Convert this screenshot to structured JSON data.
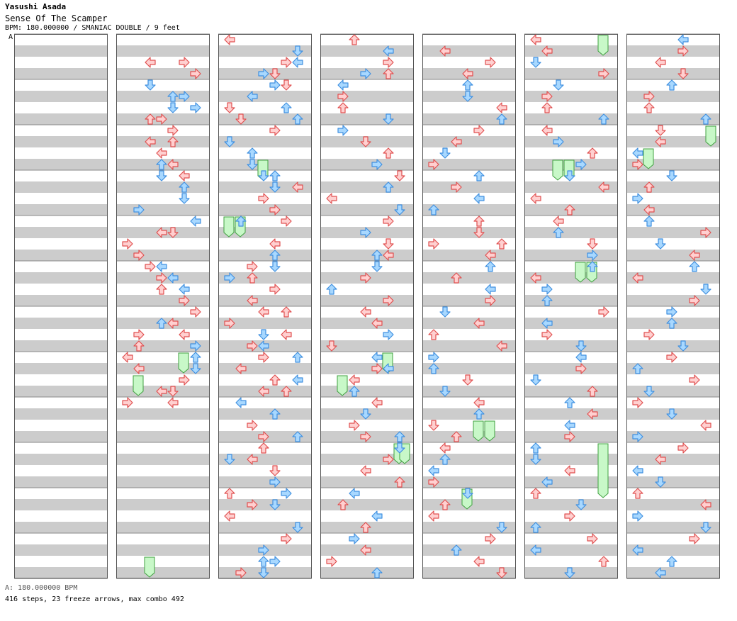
{
  "header": {
    "artist": "Yasushi Asada",
    "title": "Sense Of The Scamper",
    "info": "BPM: 180.000000 / SMANIAC DOUBLE / 9 feet",
    "bpm_marker": "A"
  },
  "footer": {
    "bpm_line": "A: 180.000000 BPM",
    "stats_line": "416 steps, 23 freeze arrows, max combo 492"
  },
  "colors": {
    "stripe": "#cccccc",
    "background": "#ffffff",
    "border": "#555555",
    "red_fill": "#ffd0d0",
    "red_stroke": "#e05050",
    "blue_fill": "#a8d8ff",
    "blue_stroke": "#4090e0",
    "freeze_fill": "#c8f8c8",
    "freeze_stroke": "#40a040"
  },
  "icons": [
    "arrow-left-icon",
    "arrow-down-icon",
    "arrow-up-icon",
    "arrow-right-icon",
    "freeze-arrow-icon"
  ],
  "notes": [
    [
      1,
      2,
      "R",
      "L"
    ],
    [
      1,
      2,
      "R",
      "R"
    ],
    [
      1,
      3,
      "R",
      "R"
    ],
    [
      1,
      4,
      "B",
      "D"
    ],
    [
      1,
      5,
      "B",
      "U"
    ],
    [
      1,
      5,
      "B",
      "R"
    ],
    [
      1,
      6,
      "B",
      "D"
    ],
    [
      1,
      6,
      "B",
      "R"
    ],
    [
      1,
      7,
      "R",
      "R"
    ],
    [
      1,
      7,
      "R",
      "U"
    ],
    [
      1,
      8,
      "R",
      "R"
    ],
    [
      1,
      9,
      "R",
      "L"
    ],
    [
      1,
      9,
      "R",
      "U"
    ],
    [
      1,
      10,
      "R",
      "L"
    ],
    [
      1,
      11,
      "R",
      "L"
    ],
    [
      1,
      11,
      "B",
      "U"
    ],
    [
      1,
      12,
      "R",
      "L"
    ],
    [
      1,
      12,
      "B",
      "D"
    ],
    [
      1,
      13,
      "B",
      "U"
    ],
    [
      1,
      14,
      "B",
      "D"
    ],
    [
      1,
      15,
      "B",
      "R"
    ],
    [
      1,
      16,
      "B",
      "L"
    ],
    [
      1,
      17,
      "R",
      "D"
    ],
    [
      1,
      17,
      "R",
      "L"
    ],
    [
      1,
      18,
      "R",
      "R"
    ],
    [
      1,
      19,
      "R",
      "R"
    ],
    [
      1,
      20,
      "B",
      "L"
    ],
    [
      1,
      20,
      "R",
      "R"
    ],
    [
      1,
      21,
      "B",
      "L"
    ],
    [
      1,
      21,
      "R",
      "R"
    ],
    [
      1,
      22,
      "B",
      "L"
    ],
    [
      1,
      22,
      "R",
      "U"
    ],
    [
      1,
      23,
      "R",
      "R"
    ],
    [
      1,
      24,
      "R",
      "R"
    ],
    [
      1,
      25,
      "R",
      "L"
    ],
    [
      1,
      25,
      "B",
      "U"
    ],
    [
      1,
      26,
      "R",
      "L"
    ],
    [
      1,
      26,
      "R",
      "R"
    ],
    [
      1,
      27,
      "R",
      "U"
    ],
    [
      1,
      27,
      "B",
      "R"
    ],
    [
      1,
      28,
      "R",
      "L"
    ],
    [
      1,
      28,
      "B",
      "U"
    ],
    [
      1,
      29,
      "R",
      "L"
    ],
    [
      1,
      29,
      "B",
      "D"
    ],
    [
      1,
      30,
      "R",
      "R"
    ],
    [
      1,
      31,
      "R",
      "L"
    ],
    [
      1,
      31,
      "R",
      "D"
    ],
    [
      1,
      32,
      "R",
      "L"
    ],
    [
      1,
      32,
      "R",
      "R"
    ],
    [
      2,
      0,
      "R",
      "L"
    ],
    [
      2,
      1,
      "B",
      "D"
    ],
    [
      2,
      2,
      "R",
      "R"
    ],
    [
      2,
      2,
      "B",
      "L"
    ],
    [
      2,
      3,
      "R",
      "D"
    ],
    [
      2,
      3,
      "B",
      "R"
    ],
    [
      2,
      4,
      "R",
      "D"
    ],
    [
      2,
      4,
      "B",
      "R"
    ],
    [
      2,
      5,
      "B",
      "L"
    ],
    [
      2,
      6,
      "B",
      "U"
    ],
    [
      2,
      6,
      "R",
      "D"
    ],
    [
      2,
      7,
      "B",
      "U"
    ],
    [
      2,
      7,
      "R",
      "D"
    ],
    [
      2,
      8,
      "R",
      "R"
    ],
    [
      2,
      9,
      "B",
      "D"
    ],
    [
      2,
      10,
      "B",
      "U"
    ],
    [
      2,
      11,
      "B",
      "D"
    ],
    [
      2,
      12,
      "B",
      "D"
    ],
    [
      2,
      12,
      "B",
      "U"
    ],
    [
      2,
      13,
      "R",
      "L"
    ],
    [
      2,
      13,
      "B",
      "D"
    ],
    [
      2,
      14,
      "R",
      "R"
    ],
    [
      2,
      15,
      "R",
      "R"
    ],
    [
      2,
      16,
      "B",
      "U"
    ],
    [
      2,
      16,
      "R",
      "R"
    ],
    [
      2,
      18,
      "R",
      "L"
    ],
    [
      2,
      19,
      "B",
      "U"
    ],
    [
      2,
      20,
      "B",
      "D"
    ],
    [
      2,
      20,
      "R",
      "R"
    ],
    [
      2,
      21,
      "R",
      "U"
    ],
    [
      2,
      21,
      "B",
      "R"
    ],
    [
      2,
      22,
      "R",
      "R"
    ],
    [
      2,
      23,
      "R",
      "L"
    ],
    [
      2,
      24,
      "R",
      "L"
    ],
    [
      2,
      24,
      "R",
      "U"
    ],
    [
      2,
      25,
      "R",
      "R"
    ],
    [
      2,
      26,
      "R",
      "L"
    ],
    [
      2,
      26,
      "B",
      "D"
    ],
    [
      2,
      27,
      "R",
      "R"
    ],
    [
      2,
      27,
      "B",
      "L"
    ],
    [
      2,
      28,
      "B",
      "U"
    ],
    [
      2,
      28,
      "R",
      "R"
    ],
    [
      2,
      29,
      "R",
      "L"
    ],
    [
      2,
      30,
      "R",
      "U"
    ],
    [
      2,
      30,
      "B",
      "L"
    ],
    [
      2,
      31,
      "R",
      "L"
    ],
    [
      2,
      31,
      "R",
      "U"
    ],
    [
      2,
      32,
      "B",
      "L"
    ],
    [
      2,
      33,
      "B",
      "U"
    ],
    [
      2,
      34,
      "R",
      "R"
    ],
    [
      2,
      35,
      "B",
      "U"
    ],
    [
      2,
      35,
      "R",
      "R"
    ],
    [
      2,
      36,
      "R",
      "U"
    ],
    [
      2,
      37,
      "R",
      "L"
    ],
    [
      2,
      37,
      "B",
      "D"
    ],
    [
      2,
      38,
      "R",
      "D"
    ],
    [
      2,
      39,
      "B",
      "R"
    ],
    [
      2,
      40,
      "R",
      "U"
    ],
    [
      2,
      40,
      "B",
      "R"
    ],
    [
      2,
      41,
      "B",
      "D"
    ],
    [
      2,
      41,
      "R",
      "R"
    ],
    [
      2,
      42,
      "R",
      "L"
    ],
    [
      2,
      43,
      "B",
      "D"
    ],
    [
      2,
      44,
      "R",
      "R"
    ],
    [
      2,
      45,
      "B",
      "R"
    ],
    [
      2,
      46,
      "B",
      "U"
    ],
    [
      2,
      46,
      "B",
      "R"
    ],
    [
      2,
      47,
      "B",
      "D"
    ],
    [
      2,
      47,
      "R",
      "R"
    ],
    [
      3,
      0,
      "R",
      "U"
    ],
    [
      3,
      1,
      "B",
      "L"
    ],
    [
      3,
      2,
      "R",
      "R"
    ],
    [
      3,
      3,
      "R",
      "U"
    ],
    [
      3,
      3,
      "B",
      "R"
    ],
    [
      3,
      4,
      "B",
      "L"
    ],
    [
      3,
      5,
      "R",
      "R"
    ],
    [
      3,
      6,
      "R",
      "U"
    ],
    [
      3,
      7,
      "B",
      "D"
    ],
    [
      3,
      8,
      "B",
      "R"
    ],
    [
      3,
      9,
      "R",
      "D"
    ],
    [
      3,
      10,
      "R",
      "U"
    ],
    [
      3,
      11,
      "B",
      "R"
    ],
    [
      3,
      12,
      "R",
      "D"
    ],
    [
      3,
      13,
      "B",
      "U"
    ],
    [
      3,
      14,
      "R",
      "L"
    ],
    [
      3,
      15,
      "B",
      "D"
    ],
    [
      3,
      16,
      "R",
      "R"
    ],
    [
      3,
      17,
      "B",
      "R"
    ],
    [
      3,
      18,
      "R",
      "D"
    ],
    [
      3,
      19,
      "B",
      "U"
    ],
    [
      3,
      19,
      "R",
      "L"
    ],
    [
      3,
      20,
      "B",
      "D"
    ],
    [
      3,
      21,
      "R",
      "R"
    ],
    [
      3,
      22,
      "B",
      "U"
    ],
    [
      3,
      23,
      "R",
      "R"
    ],
    [
      3,
      24,
      "R",
      "L"
    ],
    [
      3,
      25,
      "R",
      "L"
    ],
    [
      3,
      26,
      "B",
      "R"
    ],
    [
      3,
      27,
      "R",
      "D"
    ],
    [
      3,
      28,
      "B",
      "L"
    ],
    [
      3,
      29,
      "R",
      "R"
    ],
    [
      3,
      29,
      "B",
      "L"
    ],
    [
      3,
      30,
      "R",
      "L"
    ],
    [
      3,
      31,
      "B",
      "U"
    ],
    [
      3,
      32,
      "R",
      "L"
    ],
    [
      3,
      33,
      "B",
      "D"
    ],
    [
      3,
      34,
      "R",
      "R"
    ],
    [
      3,
      35,
      "B",
      "U"
    ],
    [
      3,
      35,
      "R",
      "R"
    ],
    [
      3,
      36,
      "B",
      "D"
    ],
    [
      3,
      37,
      "R",
      "R"
    ],
    [
      3,
      38,
      "R",
      "L"
    ],
    [
      3,
      39,
      "R",
      "U"
    ],
    [
      3,
      40,
      "B",
      "L"
    ],
    [
      3,
      41,
      "R",
      "U"
    ],
    [
      3,
      42,
      "B",
      "L"
    ],
    [
      3,
      43,
      "R",
      "U"
    ],
    [
      3,
      44,
      "B",
      "R"
    ],
    [
      3,
      45,
      "R",
      "L"
    ],
    [
      3,
      46,
      "R",
      "R"
    ],
    [
      3,
      47,
      "B",
      "U"
    ],
    [
      4,
      1,
      "R",
      "L"
    ],
    [
      4,
      2,
      "R",
      "R"
    ],
    [
      4,
      3,
      "R",
      "L"
    ],
    [
      4,
      4,
      "B",
      "U"
    ],
    [
      4,
      5,
      "B",
      "D"
    ],
    [
      4,
      6,
      "R",
      "L"
    ],
    [
      4,
      7,
      "B",
      "U"
    ],
    [
      4,
      8,
      "R",
      "R"
    ],
    [
      4,
      9,
      "R",
      "L"
    ],
    [
      4,
      10,
      "B",
      "D"
    ],
    [
      4,
      11,
      "R",
      "R"
    ],
    [
      4,
      12,
      "B",
      "U"
    ],
    [
      4,
      13,
      "R",
      "R"
    ],
    [
      4,
      14,
      "B",
      "L"
    ],
    [
      4,
      15,
      "B",
      "U"
    ],
    [
      4,
      16,
      "R",
      "U"
    ],
    [
      4,
      17,
      "R",
      "D"
    ],
    [
      4,
      18,
      "R",
      "U"
    ],
    [
      4,
      18,
      "R",
      "R"
    ],
    [
      4,
      19,
      "R",
      "L"
    ],
    [
      4,
      20,
      "B",
      "U"
    ],
    [
      4,
      21,
      "R",
      "U"
    ],
    [
      4,
      22,
      "B",
      "L"
    ],
    [
      4,
      23,
      "R",
      "R"
    ],
    [
      4,
      24,
      "B",
      "D"
    ],
    [
      4,
      25,
      "R",
      "L"
    ],
    [
      4,
      26,
      "R",
      "U"
    ],
    [
      4,
      27,
      "R",
      "L"
    ],
    [
      4,
      28,
      "B",
      "R"
    ],
    [
      4,
      29,
      "B",
      "U"
    ],
    [
      4,
      30,
      "R",
      "D"
    ],
    [
      4,
      31,
      "B",
      "D"
    ],
    [
      4,
      32,
      "R",
      "L"
    ],
    [
      4,
      33,
      "B",
      "U"
    ],
    [
      4,
      34,
      "R",
      "D"
    ],
    [
      4,
      35,
      "R",
      "U"
    ],
    [
      4,
      36,
      "R",
      "L"
    ],
    [
      4,
      37,
      "B",
      "U"
    ],
    [
      4,
      38,
      "B",
      "L"
    ],
    [
      4,
      39,
      "R",
      "R"
    ],
    [
      4,
      40,
      "B",
      "D"
    ],
    [
      4,
      41,
      "R",
      "U"
    ],
    [
      4,
      42,
      "R",
      "L"
    ],
    [
      4,
      43,
      "B",
      "D"
    ],
    [
      4,
      44,
      "R",
      "R"
    ],
    [
      4,
      45,
      "B",
      "U"
    ],
    [
      4,
      46,
      "R",
      "L"
    ],
    [
      4,
      47,
      "R",
      "D"
    ],
    [
      5,
      0,
      "R",
      "L"
    ],
    [
      5,
      1,
      "R",
      "L"
    ],
    [
      5,
      2,
      "B",
      "D"
    ],
    [
      5,
      3,
      "R",
      "R"
    ],
    [
      5,
      4,
      "B",
      "D"
    ],
    [
      5,
      5,
      "R",
      "R"
    ],
    [
      5,
      6,
      "R",
      "U"
    ],
    [
      5,
      7,
      "B",
      "U"
    ],
    [
      5,
      8,
      "R",
      "L"
    ],
    [
      5,
      9,
      "B",
      "R"
    ],
    [
      5,
      10,
      "R",
      "U"
    ],
    [
      5,
      11,
      "B",
      "R"
    ],
    [
      5,
      12,
      "B",
      "D"
    ],
    [
      5,
      13,
      "R",
      "L"
    ],
    [
      5,
      14,
      "R",
      "L"
    ],
    [
      5,
      15,
      "R",
      "U"
    ],
    [
      5,
      16,
      "R",
      "L"
    ],
    [
      5,
      17,
      "B",
      "U"
    ],
    [
      5,
      18,
      "R",
      "D"
    ],
    [
      5,
      19,
      "B",
      "R"
    ],
    [
      5,
      20,
      "B",
      "U"
    ],
    [
      5,
      21,
      "R",
      "L"
    ],
    [
      5,
      22,
      "B",
      "R"
    ],
    [
      5,
      23,
      "B",
      "U"
    ],
    [
      5,
      24,
      "R",
      "R"
    ],
    [
      5,
      25,
      "B",
      "L"
    ],
    [
      5,
      26,
      "R",
      "R"
    ],
    [
      5,
      27,
      "B",
      "D"
    ],
    [
      5,
      28,
      "B",
      "L"
    ],
    [
      5,
      29,
      "R",
      "R"
    ],
    [
      5,
      30,
      "B",
      "D"
    ],
    [
      5,
      31,
      "R",
      "U"
    ],
    [
      5,
      32,
      "B",
      "U"
    ],
    [
      5,
      33,
      "R",
      "L"
    ],
    [
      5,
      34,
      "B",
      "L"
    ],
    [
      5,
      35,
      "R",
      "R"
    ],
    [
      5,
      36,
      "B",
      "U"
    ],
    [
      5,
      37,
      "B",
      "D"
    ],
    [
      5,
      38,
      "R",
      "L"
    ],
    [
      5,
      39,
      "B",
      "L"
    ],
    [
      5,
      40,
      "R",
      "U"
    ],
    [
      5,
      41,
      "B",
      "D"
    ],
    [
      5,
      42,
      "R",
      "R"
    ],
    [
      5,
      43,
      "B",
      "U"
    ],
    [
      5,
      44,
      "R",
      "R"
    ],
    [
      5,
      45,
      "B",
      "L"
    ],
    [
      5,
      46,
      "R",
      "U"
    ],
    [
      5,
      47,
      "B",
      "D"
    ],
    [
      6,
      0,
      "B",
      "L"
    ],
    [
      6,
      1,
      "R",
      "R"
    ],
    [
      6,
      2,
      "R",
      "L"
    ],
    [
      6,
      3,
      "R",
      "D"
    ],
    [
      6,
      4,
      "B",
      "U"
    ],
    [
      6,
      5,
      "R",
      "R"
    ],
    [
      6,
      6,
      "R",
      "U"
    ],
    [
      6,
      7,
      "B",
      "U"
    ],
    [
      6,
      8,
      "R",
      "D"
    ],
    [
      6,
      9,
      "R",
      "L"
    ],
    [
      6,
      10,
      "B",
      "L"
    ],
    [
      6,
      11,
      "R",
      "R"
    ],
    [
      6,
      12,
      "B",
      "D"
    ],
    [
      6,
      13,
      "R",
      "U"
    ],
    [
      6,
      14,
      "B",
      "R"
    ],
    [
      6,
      15,
      "R",
      "L"
    ],
    [
      6,
      16,
      "B",
      "U"
    ],
    [
      6,
      17,
      "R",
      "R"
    ],
    [
      6,
      18,
      "B",
      "D"
    ],
    [
      6,
      19,
      "R",
      "L"
    ],
    [
      6,
      20,
      "B",
      "U"
    ],
    [
      6,
      21,
      "R",
      "L"
    ],
    [
      6,
      22,
      "B",
      "D"
    ],
    [
      6,
      23,
      "R",
      "R"
    ],
    [
      6,
      24,
      "B",
      "R"
    ],
    [
      6,
      25,
      "B",
      "U"
    ],
    [
      6,
      26,
      "R",
      "R"
    ],
    [
      6,
      27,
      "B",
      "D"
    ],
    [
      6,
      28,
      "R",
      "R"
    ],
    [
      6,
      29,
      "B",
      "U"
    ],
    [
      6,
      30,
      "R",
      "R"
    ],
    [
      6,
      31,
      "B",
      "D"
    ],
    [
      6,
      32,
      "R",
      "R"
    ],
    [
      6,
      33,
      "B",
      "D"
    ],
    [
      6,
      34,
      "R",
      "L"
    ],
    [
      6,
      35,
      "B",
      "R"
    ],
    [
      6,
      36,
      "R",
      "R"
    ],
    [
      6,
      37,
      "R",
      "L"
    ],
    [
      6,
      38,
      "B",
      "L"
    ],
    [
      6,
      39,
      "B",
      "D"
    ],
    [
      6,
      40,
      "R",
      "U"
    ],
    [
      6,
      41,
      "R",
      "L"
    ],
    [
      6,
      42,
      "B",
      "R"
    ],
    [
      6,
      43,
      "B",
      "D"
    ],
    [
      6,
      44,
      "R",
      "R"
    ],
    [
      6,
      45,
      "B",
      "L"
    ],
    [
      6,
      46,
      "B",
      "U"
    ],
    [
      6,
      47,
      "B",
      "L"
    ],
    [
      7,
      0,
      "R",
      "U"
    ],
    [
      7,
      1,
      "B",
      "L"
    ],
    [
      7,
      2,
      "R",
      "R"
    ],
    [
      7,
      3,
      "R",
      "D"
    ],
    [
      7,
      4,
      "B",
      "R"
    ],
    [
      7,
      5,
      "R",
      "L"
    ],
    [
      7,
      6,
      "R",
      "D"
    ],
    [
      7,
      7,
      "R",
      "U"
    ],
    [
      7,
      8,
      "R",
      "D"
    ],
    [
      7,
      9,
      "R",
      "U"
    ],
    [
      7,
      10,
      "R",
      "R"
    ],
    [
      7,
      11,
      "B",
      "U"
    ],
    [
      7,
      12,
      "R",
      "D"
    ],
    [
      7,
      13,
      "R",
      "L"
    ],
    [
      7,
      14,
      "R",
      "R"
    ],
    [
      7,
      15,
      "B",
      "L"
    ],
    [
      7,
      16,
      "B",
      "R"
    ],
    [
      7,
      17,
      "B",
      "D"
    ],
    [
      7,
      18,
      "R",
      "R"
    ],
    [
      7,
      19,
      "R",
      "L"
    ],
    [
      7,
      20,
      "R",
      "U"
    ],
    [
      7,
      21,
      "R",
      "L"
    ],
    [
      7,
      22,
      "B",
      "R"
    ],
    [
      7,
      23,
      "R",
      "R"
    ],
    [
      7,
      24,
      "R",
      "U"
    ],
    [
      7,
      25,
      "B",
      "D"
    ],
    [
      7,
      26,
      "B",
      "U"
    ],
    [
      7,
      27,
      "B",
      "R"
    ],
    [
      7,
      28,
      "B",
      "U"
    ]
  ],
  "freezes": [
    [
      1,
      28,
      29
    ],
    [
      1,
      30,
      31
    ],
    [
      1,
      46,
      47
    ],
    [
      2,
      11,
      12
    ],
    [
      2,
      16,
      17
    ],
    [
      2,
      16,
      17
    ],
    [
      3,
      28,
      29
    ],
    [
      3,
      30,
      31
    ],
    [
      3,
      36,
      37
    ],
    [
      3,
      36,
      37
    ],
    [
      4,
      34,
      35
    ],
    [
      4,
      34,
      35
    ],
    [
      4,
      40,
      41
    ],
    [
      5,
      0,
      1
    ],
    [
      5,
      11,
      12
    ],
    [
      5,
      11,
      12
    ],
    [
      5,
      20,
      21
    ],
    [
      5,
      20,
      21
    ],
    [
      5,
      36,
      40
    ],
    [
      6,
      8,
      9
    ],
    [
      6,
      10,
      11
    ],
    [
      7,
      16,
      19
    ],
    [
      7,
      17,
      19
    ]
  ]
}
